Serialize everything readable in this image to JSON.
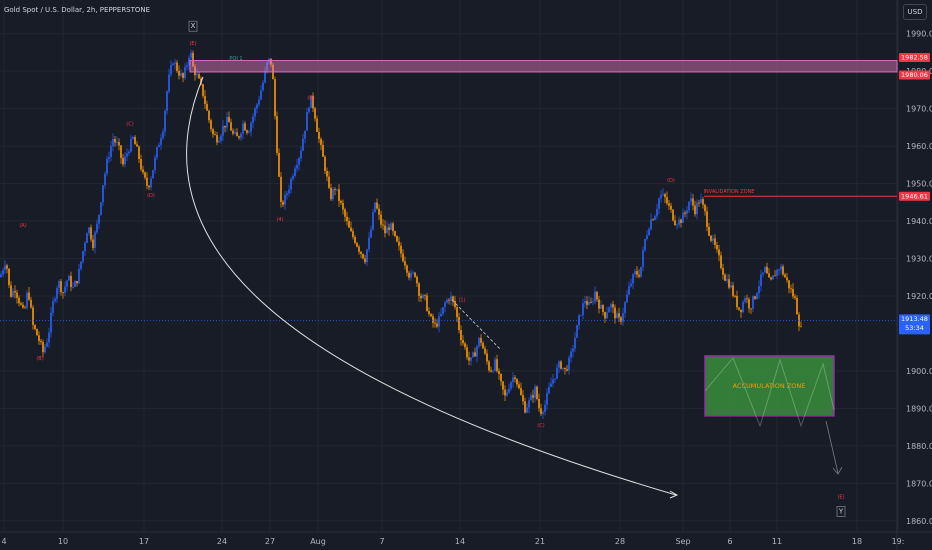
{
  "header": {
    "title": "Gold Spot / U.S. Dollar, 2h, PEPPERSTONE",
    "currency_button": "USD"
  },
  "colors": {
    "background": "#181c27",
    "bull": "#2962ff",
    "bear": "#ff9800",
    "grid": "#222632",
    "axis_text": "#b2b5be",
    "red_label": "#f23645",
    "zone_fill": "#388e3c",
    "zone_border": "#9c27b0",
    "last_price": "#2962ff"
  },
  "chart_data": {
    "type": "candlestick",
    "symbol": "Gold Spot / U.S. Dollar",
    "interval": "2h",
    "source": "PEPPERSTONE",
    "ylim": [
      1857,
      1999
    ],
    "y_ticks": [
      1990.0,
      1980.0,
      1970.0,
      1960.0,
      1950.0,
      1940.0,
      1930.0,
      1920.0,
      1900.0,
      1890.0,
      1880.0,
      1870.0,
      1860.0
    ],
    "x_ticks": [
      "4",
      "10",
      "17",
      "24",
      "27",
      "Aug",
      "7",
      "14",
      "21",
      "28",
      "Sep",
      "6",
      "11",
      "18",
      "19:"
    ],
    "price_path": [
      [
        0,
        1925
      ],
      [
        6,
        1930
      ],
      [
        10,
        1920
      ],
      [
        15,
        1922
      ],
      [
        20,
        1918
      ],
      [
        24,
        1915
      ],
      [
        28,
        1922
      ],
      [
        33,
        1912
      ],
      [
        38,
        1909
      ],
      [
        43,
        1905
      ],
      [
        48,
        1909
      ],
      [
        53,
        1918
      ],
      [
        58,
        1924
      ],
      [
        63,
        1921
      ],
      [
        68,
        1925
      ],
      [
        73,
        1922
      ],
      [
        78,
        1925
      ],
      [
        83,
        1932
      ],
      [
        88,
        1939
      ],
      [
        93,
        1934
      ],
      [
        98,
        1940
      ],
      [
        103,
        1950
      ],
      [
        108,
        1957
      ],
      [
        113,
        1962
      ],
      [
        118,
        1960
      ],
      [
        123,
        1955
      ],
      [
        128,
        1959
      ],
      [
        133,
        1962
      ],
      [
        138,
        1958
      ],
      [
        143,
        1952
      ],
      [
        148,
        1949
      ],
      [
        153,
        1954
      ],
      [
        158,
        1960
      ],
      [
        163,
        1965
      ],
      [
        168,
        1977
      ],
      [
        173,
        1983
      ],
      [
        178,
        1980
      ],
      [
        183,
        1978
      ],
      [
        188,
        1983
      ],
      [
        190,
        1986
      ],
      [
        193,
        1981
      ],
      [
        198,
        1978
      ],
      [
        203,
        1974
      ],
      [
        208,
        1968
      ],
      [
        213,
        1963
      ],
      [
        218,
        1962
      ],
      [
        223,
        1965
      ],
      [
        228,
        1967
      ],
      [
        233,
        1963
      ],
      [
        238,
        1962
      ],
      [
        243,
        1966
      ],
      [
        248,
        1964
      ],
      [
        253,
        1968
      ],
      [
        258,
        1972
      ],
      [
        263,
        1977
      ],
      [
        268,
        1983
      ],
      [
        272,
        1982
      ],
      [
        275,
        1968
      ],
      [
        278,
        1955
      ],
      [
        281,
        1944
      ],
      [
        285,
        1946
      ],
      [
        290,
        1950
      ],
      [
        295,
        1955
      ],
      [
        300,
        1958
      ],
      [
        305,
        1965
      ],
      [
        310,
        1973
      ],
      [
        314,
        1970
      ],
      [
        318,
        1963
      ],
      [
        322,
        1958
      ],
      [
        326,
        1953
      ],
      [
        330,
        1946
      ],
      [
        335,
        1949
      ],
      [
        340,
        1945
      ],
      [
        345,
        1941
      ],
      [
        350,
        1937
      ],
      [
        355,
        1935
      ],
      [
        360,
        1932
      ],
      [
        365,
        1930
      ],
      [
        370,
        1936
      ],
      [
        375,
        1945
      ],
      [
        380,
        1940
      ],
      [
        385,
        1937
      ],
      [
        390,
        1939
      ],
      [
        395,
        1935
      ],
      [
        400,
        1932
      ],
      [
        405,
        1929
      ],
      [
        410,
        1925
      ],
      [
        415,
        1926
      ],
      [
        420,
        1920
      ],
      [
        425,
        1919
      ],
      [
        430,
        1914
      ],
      [
        435,
        1912
      ],
      [
        440,
        1914
      ],
      [
        445,
        1918
      ],
      [
        450,
        1920
      ],
      [
        455,
        1917
      ],
      [
        460,
        1910
      ],
      [
        465,
        1906
      ],
      [
        470,
        1902
      ],
      [
        475,
        1905
      ],
      [
        480,
        1909
      ],
      [
        485,
        1904
      ],
      [
        490,
        1900
      ],
      [
        495,
        1902
      ],
      [
        500,
        1897
      ],
      [
        505,
        1893
      ],
      [
        510,
        1897
      ],
      [
        515,
        1899
      ],
      [
        520,
        1894
      ],
      [
        525,
        1890
      ],
      [
        530,
        1892
      ],
      [
        535,
        1895
      ],
      [
        540,
        1889
      ],
      [
        545,
        1891
      ],
      [
        550,
        1896
      ],
      [
        555,
        1899
      ],
      [
        560,
        1902
      ],
      [
        565,
        1900
      ],
      [
        570,
        1903
      ],
      [
        575,
        1909
      ],
      [
        580,
        1915
      ],
      [
        585,
        1919
      ],
      [
        590,
        1917
      ],
      [
        595,
        1921
      ],
      [
        600,
        1917
      ],
      [
        605,
        1915
      ],
      [
        610,
        1918
      ],
      [
        615,
        1915
      ],
      [
        620,
        1913
      ],
      [
        625,
        1918
      ],
      [
        630,
        1923
      ],
      [
        635,
        1926
      ],
      [
        640,
        1926
      ],
      [
        645,
        1935
      ],
      [
        650,
        1940
      ],
      [
        655,
        1942
      ],
      [
        660,
        1947
      ],
      [
        665,
        1946
      ],
      [
        670,
        1943
      ],
      [
        675,
        1940
      ],
      [
        680,
        1940
      ],
      [
        685,
        1942
      ],
      [
        690,
        1946
      ],
      [
        695,
        1943
      ],
      [
        700,
        1946
      ],
      [
        705,
        1942
      ],
      [
        710,
        1936
      ],
      [
        715,
        1933
      ],
      [
        720,
        1929
      ],
      [
        725,
        1925
      ],
      [
        730,
        1923
      ],
      [
        735,
        1919
      ],
      [
        740,
        1916
      ],
      [
        745,
        1920
      ],
      [
        750,
        1917
      ],
      [
        755,
        1920
      ],
      [
        760,
        1924
      ],
      [
        765,
        1927
      ],
      [
        770,
        1923
      ],
      [
        775,
        1926
      ],
      [
        780,
        1928
      ],
      [
        785,
        1925
      ],
      [
        790,
        1922
      ],
      [
        795,
        1919
      ],
      [
        799,
        1913
      ],
      [
        802,
        1910
      ]
    ],
    "resistance_zone": {
      "low": 1980.06,
      "high": 1982.58
    },
    "price_labels": [
      {
        "value": 1982.58,
        "text": "1982.58",
        "color": "#f23645"
      },
      {
        "value": 1980.06,
        "text": "1980.06",
        "color": "#f23645"
      },
      {
        "value": 1946.61,
        "text": "1946.61",
        "color": "#f23645"
      },
      {
        "value": 1913.48,
        "text": "1913.48",
        "color": "#2962ff"
      }
    ],
    "countdown": "53:34",
    "invalidation_level": 1946.61,
    "last_price": 1913.48,
    "accumulation_zone": {
      "low": 1888,
      "high": 1904
    },
    "annotations": [
      {
        "id": "box-x",
        "text": "X",
        "x": 193,
        "price": 1992,
        "boxed": true
      },
      {
        "id": "wave-e-top",
        "text": "(E)",
        "x": 193,
        "price": 1987.5
      },
      {
        "id": "poi",
        "text": "POI 1",
        "x": 236,
        "price": 1983.5,
        "color": "#26a69a"
      },
      {
        "id": "wave-c-left",
        "text": "(C)",
        "x": 130,
        "price": 1966
      },
      {
        "id": "wave-d-left",
        "text": "(D)",
        "x": 151,
        "price": 1947
      },
      {
        "id": "wave-a-left",
        "text": "(A)",
        "x": 23,
        "price": 1939
      },
      {
        "id": "wave-b-left",
        "text": "(B)",
        "x": 40,
        "price": 1903.5
      },
      {
        "id": "wave-b-mid",
        "text": "(B)",
        "x": 311,
        "price": 1973
      },
      {
        "id": "wave-4",
        "text": "(4)",
        "x": 280,
        "price": 1940.5
      },
      {
        "id": "wave-1",
        "text": "(1)",
        "x": 462,
        "price": 1919
      },
      {
        "id": "wave-c-low",
        "text": "(C)",
        "x": 541,
        "price": 1885.5
      },
      {
        "id": "wave-d-right",
        "text": "(D)",
        "x": 671,
        "price": 1951
      },
      {
        "id": "invalidation",
        "text": "INVALIDATION ZONE",
        "x": 729,
        "price": 1948
      },
      {
        "id": "accumulation",
        "text": "ACCUMULATION ZONE",
        "x": 769,
        "price": 1896
      },
      {
        "id": "wave-e-right",
        "text": "(E)",
        "x": 841,
        "price": 1866.5
      },
      {
        "id": "box-y",
        "text": "Y",
        "x": 841,
        "price": 1862.5,
        "boxed": true
      }
    ]
  }
}
